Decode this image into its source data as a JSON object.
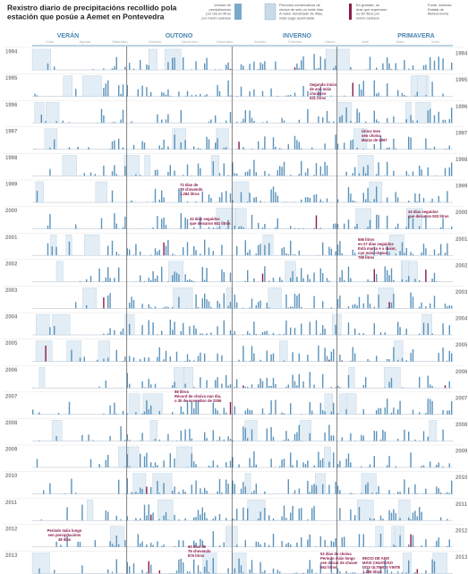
{
  "header": {
    "title": [
      "Rexistro diario de precipitacións recollido pola",
      "estación que posúe a Aemet en Pontevedra"
    ]
  },
  "legend": [
    [
      "Volume de",
      "precipitacións",
      "por día en litros",
      "por metro cadrado"
    ],
    [
      "Períodos consecutivos de",
      "choiva de seis ou máis días",
      "A maior densidade de liñas,",
      "máis auga acumulada"
    ],
    [
      "En granate, os",
      "días que superaron",
      "os 60 litros por",
      "metro cadrado"
    ],
    [
      "Fonte: Axencia",
      "Estatal de",
      "Meteoroloxía"
    ]
  ],
  "seasons": [
    "VERÁN",
    "OUTONO",
    "INVERNO",
    "PRIMAVERA"
  ],
  "months": [
    "Xullo",
    "Agosto",
    "Setembro",
    "Outubro",
    "Novembro",
    "Decembro",
    "Xaneiro",
    "Febreiro",
    "Marzo",
    "Abril",
    "Maio",
    "Xuño"
  ],
  "years": [
    "1994",
    "1995",
    "1996",
    "1997",
    "1998",
    "1999",
    "2000",
    "2001",
    "2002",
    "2003",
    "2004",
    "2005",
    "2006",
    "2007",
    "2008",
    "2009",
    "2010",
    "2011",
    "2012",
    "2013"
  ],
  "annotations": [
    [
      "Segundo inicio",
      "de ano máis",
      "chuvioso",
      "531 litros"
    ],
    [
      "Único mes",
      "sen choiva",
      "Marzo de 1997"
    ],
    [
      "72 días de",
      "79 chovendo",
      "1.284 litros"
    ],
    [
      "34 días seguidos",
      "que deixaron 933 litros"
    ],
    [
      "32 días seguidos",
      "que deixaron 941 litros"
    ],
    [
      "656 litros",
      "en 27 días seguidos",
      "Está marca é a maior,",
      "con máis choiva:",
      "799 litros"
    ],
    [
      "98 litros",
      "Récord de choiva nun día,",
      "o 30 de novembro de 2006"
    ],
    [
      "Período máis longo",
      "sen precipitacións",
      "48 días"
    ],
    [
      "60 días de",
      "76 chovendo",
      "876 litros"
    ],
    [
      "52 días de choiva",
      "Período máis longo",
      "sen deixar de chover",
      "562 litros"
    ],
    [
      "INICIO DE ANO",
      "MÁIS CHUVIOSO",
      "DOS ÚLTIMOS VINTE",
      "1.256 litros"
    ]
  ]
}
